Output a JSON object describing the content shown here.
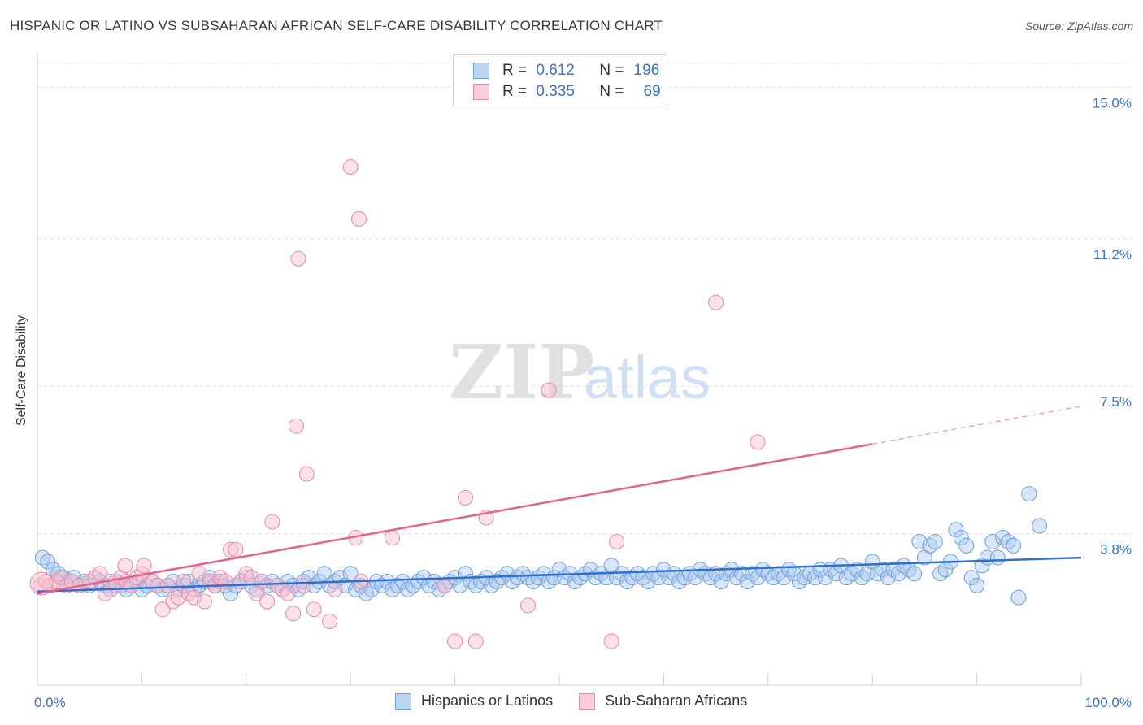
{
  "header": {
    "title": "HISPANIC OR LATINO VS SUBSAHARAN AFRICAN SELF-CARE DISABILITY CORRELATION CHART",
    "source": "Source: ZipAtlas.com"
  },
  "legend_stats": {
    "row1": {
      "r_label": "R =",
      "r_value": "0.612",
      "n_label": "N =",
      "n_value": "196"
    },
    "row2": {
      "r_label": "R =",
      "r_value": "0.335",
      "n_label": "N =",
      "n_value": "69"
    }
  },
  "bottom_legend": {
    "series1": "Hispanics or Latinos",
    "series2": "Sub-Saharan Africans"
  },
  "colors": {
    "blue_fill": "#a9c8f0",
    "blue_stroke": "#6e9fd8",
    "blue_line": "#2f6fcf",
    "pink_fill": "#f7bfd0",
    "pink_stroke": "#e68aa8",
    "pink_line": "#e8608c",
    "tick_text": "#3a72c9"
  },
  "chart_data": {
    "type": "scatter",
    "title": "HISPANIC OR LATINO VS SUBSAHARAN AFRICAN SELF-CARE DISABILITY CORRELATION CHART",
    "xlabel": "",
    "ylabel": "Self-Care Disability",
    "xlim": [
      0,
      100
    ],
    "ylim": [
      0,
      15.6
    ],
    "x_tick_labels": [
      "0.0%",
      "100.0%"
    ],
    "y_ticks": [
      3.8,
      7.5,
      11.2,
      15.0
    ],
    "y_tick_labels": [
      "3.8%",
      "7.5%",
      "11.2%",
      "15.0%"
    ],
    "grid": "horizontal dashed",
    "legend_position": "top-center",
    "series": [
      {
        "name": "Hispanics or Latinos",
        "r": 0.612,
        "n": 196,
        "trend": {
          "x0": 0,
          "y0": 2.35,
          "x1": 100,
          "y1": 3.2
        },
        "points": [
          [
            0.5,
            3.2
          ],
          [
            1,
            3.1
          ],
          [
            1.5,
            2.9
          ],
          [
            2,
            2.8
          ],
          [
            2.5,
            2.7
          ],
          [
            3,
            2.6
          ],
          [
            3.5,
            2.7
          ],
          [
            4,
            2.5
          ],
          [
            4.5,
            2.6
          ],
          [
            5,
            2.5
          ],
          [
            5.5,
            2.7
          ],
          [
            6,
            2.6
          ],
          [
            6.5,
            2.5
          ],
          [
            7,
            2.4
          ],
          [
            7.5,
            2.6
          ],
          [
            8,
            2.5
          ],
          [
            8.5,
            2.4
          ],
          [
            9,
            2.5
          ],
          [
            9.5,
            2.6
          ],
          [
            10,
            2.4
          ],
          [
            10.5,
            2.5
          ],
          [
            11,
            2.6
          ],
          [
            11.5,
            2.5
          ],
          [
            12,
            2.4
          ],
          [
            12.5,
            2.5
          ],
          [
            13,
            2.6
          ],
          [
            13.5,
            2.4
          ],
          [
            14,
            2.5
          ],
          [
            14.5,
            2.6
          ],
          [
            15,
            2.4
          ],
          [
            15.5,
            2.5
          ],
          [
            16,
            2.6
          ],
          [
            16.5,
            2.7
          ],
          [
            17,
            2.5
          ],
          [
            17.5,
            2.6
          ],
          [
            18,
            2.5
          ],
          [
            18.5,
            2.3
          ],
          [
            19,
            2.5
          ],
          [
            19.5,
            2.6
          ],
          [
            20,
            2.7
          ],
          [
            20.5,
            2.5
          ],
          [
            21,
            2.4
          ],
          [
            21.5,
            2.6
          ],
          [
            22,
            2.5
          ],
          [
            22.5,
            2.6
          ],
          [
            23,
            2.5
          ],
          [
            23.5,
            2.4
          ],
          [
            24,
            2.6
          ],
          [
            24.5,
            2.5
          ],
          [
            25,
            2.4
          ],
          [
            25.5,
            2.6
          ],
          [
            26,
            2.7
          ],
          [
            26.5,
            2.5
          ],
          [
            27,
            2.6
          ],
          [
            27.5,
            2.8
          ],
          [
            28,
            2.5
          ],
          [
            28.5,
            2.6
          ],
          [
            29,
            2.7
          ],
          [
            29.5,
            2.5
          ],
          [
            30,
            2.8
          ],
          [
            30.5,
            2.4
          ],
          [
            31,
            2.5
          ],
          [
            31.5,
            2.3
          ],
          [
            32,
            2.4
          ],
          [
            32.5,
            2.6
          ],
          [
            33,
            2.5
          ],
          [
            33.5,
            2.6
          ],
          [
            34,
            2.4
          ],
          [
            34.5,
            2.5
          ],
          [
            35,
            2.6
          ],
          [
            35.5,
            2.4
          ],
          [
            36,
            2.5
          ],
          [
            36.5,
            2.6
          ],
          [
            37,
            2.7
          ],
          [
            37.5,
            2.5
          ],
          [
            38,
            2.6
          ],
          [
            38.5,
            2.4
          ],
          [
            39,
            2.5
          ],
          [
            39.5,
            2.6
          ],
          [
            40,
            2.7
          ],
          [
            40.5,
            2.5
          ],
          [
            41,
            2.8
          ],
          [
            41.5,
            2.6
          ],
          [
            42,
            2.5
          ],
          [
            42.5,
            2.6
          ],
          [
            43,
            2.7
          ],
          [
            43.5,
            2.5
          ],
          [
            44,
            2.6
          ],
          [
            44.5,
            2.7
          ],
          [
            45,
            2.8
          ],
          [
            45.5,
            2.6
          ],
          [
            46,
            2.7
          ],
          [
            46.5,
            2.8
          ],
          [
            47,
            2.7
          ],
          [
            47.5,
            2.6
          ],
          [
            48,
            2.7
          ],
          [
            48.5,
            2.8
          ],
          [
            49,
            2.6
          ],
          [
            49.5,
            2.7
          ],
          [
            50,
            2.9
          ],
          [
            50.5,
            2.7
          ],
          [
            51,
            2.8
          ],
          [
            51.5,
            2.6
          ],
          [
            52,
            2.7
          ],
          [
            52.5,
            2.8
          ],
          [
            53,
            2.9
          ],
          [
            53.5,
            2.7
          ],
          [
            54,
            2.8
          ],
          [
            54.5,
            2.7
          ],
          [
            55,
            3.0
          ],
          [
            55.5,
            2.7
          ],
          [
            56,
            2.8
          ],
          [
            56.5,
            2.6
          ],
          [
            57,
            2.7
          ],
          [
            57.5,
            2.8
          ],
          [
            58,
            2.7
          ],
          [
            58.5,
            2.6
          ],
          [
            59,
            2.8
          ],
          [
            59.5,
            2.7
          ],
          [
            60,
            2.9
          ],
          [
            60.5,
            2.7
          ],
          [
            61,
            2.8
          ],
          [
            61.5,
            2.6
          ],
          [
            62,
            2.7
          ],
          [
            62.5,
            2.8
          ],
          [
            63,
            2.7
          ],
          [
            63.5,
            2.9
          ],
          [
            64,
            2.8
          ],
          [
            64.5,
            2.7
          ],
          [
            65,
            2.8
          ],
          [
            65.5,
            2.6
          ],
          [
            66,
            2.8
          ],
          [
            66.5,
            2.9
          ],
          [
            67,
            2.7
          ],
          [
            67.5,
            2.8
          ],
          [
            68,
            2.6
          ],
          [
            68.5,
            2.8
          ],
          [
            69,
            2.7
          ],
          [
            69.5,
            2.9
          ],
          [
            70,
            2.8
          ],
          [
            70.5,
            2.7
          ],
          [
            71,
            2.8
          ],
          [
            71.5,
            2.7
          ],
          [
            72,
            2.9
          ],
          [
            72.5,
            2.8
          ],
          [
            73,
            2.6
          ],
          [
            73.5,
            2.7
          ],
          [
            74,
            2.8
          ],
          [
            74.5,
            2.7
          ],
          [
            75,
            2.9
          ],
          [
            75.5,
            2.7
          ],
          [
            76,
            2.9
          ],
          [
            76.5,
            2.8
          ],
          [
            77,
            3.0
          ],
          [
            77.5,
            2.7
          ],
          [
            78,
            2.8
          ],
          [
            78.5,
            2.9
          ],
          [
            79,
            2.7
          ],
          [
            79.5,
            2.8
          ],
          [
            80,
            3.1
          ],
          [
            80.5,
            2.8
          ],
          [
            81,
            2.9
          ],
          [
            81.5,
            2.7
          ],
          [
            82,
            2.9
          ],
          [
            82.5,
            2.8
          ],
          [
            83,
            3.0
          ],
          [
            83.5,
            2.9
          ],
          [
            84,
            2.8
          ],
          [
            84.5,
            3.6
          ],
          [
            85,
            3.2
          ],
          [
            85.5,
            3.5
          ],
          [
            86,
            3.6
          ],
          [
            86.5,
            2.8
          ],
          [
            87,
            2.9
          ],
          [
            87.5,
            3.1
          ],
          [
            88,
            3.9
          ],
          [
            88.5,
            3.7
          ],
          [
            89,
            3.5
          ],
          [
            89.5,
            2.7
          ],
          [
            90,
            2.5
          ],
          [
            90.5,
            3.0
          ],
          [
            91,
            3.2
          ],
          [
            91.5,
            3.6
          ],
          [
            92,
            3.2
          ],
          [
            92.5,
            3.7
          ],
          [
            93,
            3.6
          ],
          [
            93.5,
            3.5
          ],
          [
            94,
            2.2
          ],
          [
            95,
            4.8
          ],
          [
            96,
            4.0
          ]
        ]
      },
      {
        "name": "Sub-Saharan Africans",
        "r": 0.335,
        "n": 69,
        "trend": {
          "x0": 0,
          "y0": 2.3,
          "x1": 80,
          "y1": 6.05
        },
        "trend_dashed": {
          "x0": 80,
          "y0": 6.05,
          "x1": 100,
          "y1": 7.0
        },
        "points": [
          [
            0.3,
            2.5
          ],
          [
            0.8,
            2.6
          ],
          [
            1.2,
            2.5
          ],
          [
            1.8,
            2.6
          ],
          [
            2.3,
            2.7
          ],
          [
            2.8,
            2.5
          ],
          [
            3.3,
            2.6
          ],
          [
            4,
            2.5
          ],
          [
            5,
            2.6
          ],
          [
            5.5,
            2.7
          ],
          [
            6,
            2.8
          ],
          [
            6.5,
            2.3
          ],
          [
            7,
            2.6
          ],
          [
            7.5,
            2.5
          ],
          [
            8,
            2.7
          ],
          [
            8.5,
            2.6
          ],
          [
            8.4,
            3.0
          ],
          [
            9,
            2.5
          ],
          [
            9.5,
            2.7
          ],
          [
            10,
            2.8
          ],
          [
            10.2,
            3.0
          ],
          [
            11,
            2.6
          ],
          [
            11.5,
            2.5
          ],
          [
            12,
            1.9
          ],
          [
            12.5,
            2.5
          ],
          [
            13,
            2.1
          ],
          [
            13.5,
            2.2
          ],
          [
            14,
            2.6
          ],
          [
            14.5,
            2.3
          ],
          [
            15,
            2.2
          ],
          [
            15.5,
            2.8
          ],
          [
            16,
            2.1
          ],
          [
            16.5,
            2.6
          ],
          [
            17,
            2.5
          ],
          [
            17.5,
            2.7
          ],
          [
            18,
            2.6
          ],
          [
            18.5,
            3.4
          ],
          [
            19,
            3.4
          ],
          [
            19.5,
            2.6
          ],
          [
            20,
            2.8
          ],
          [
            20.5,
            2.7
          ],
          [
            21,
            2.3
          ],
          [
            21.5,
            2.6
          ],
          [
            22,
            2.1
          ],
          [
            22.5,
            4.1
          ],
          [
            23,
            2.5
          ],
          [
            23.5,
            2.4
          ],
          [
            24,
            2.3
          ],
          [
            24.5,
            1.8
          ],
          [
            24.8,
            6.5
          ],
          [
            25,
            10.7
          ],
          [
            25.5,
            2.5
          ],
          [
            25.8,
            5.3
          ],
          [
            26.5,
            1.9
          ],
          [
            28,
            1.6
          ],
          [
            28.5,
            2.4
          ],
          [
            30,
            13.0
          ],
          [
            30.5,
            3.7
          ],
          [
            30.8,
            11.7
          ],
          [
            31,
            2.6
          ],
          [
            34,
            3.7
          ],
          [
            39,
            2.5
          ],
          [
            40,
            1.1
          ],
          [
            41,
            4.7
          ],
          [
            42,
            1.1
          ],
          [
            43,
            4.2
          ],
          [
            47,
            2.0
          ],
          [
            49,
            7.4
          ],
          [
            55,
            1.1
          ],
          [
            55.5,
            3.6
          ],
          [
            65,
            9.6
          ],
          [
            69,
            6.1
          ]
        ]
      }
    ]
  }
}
